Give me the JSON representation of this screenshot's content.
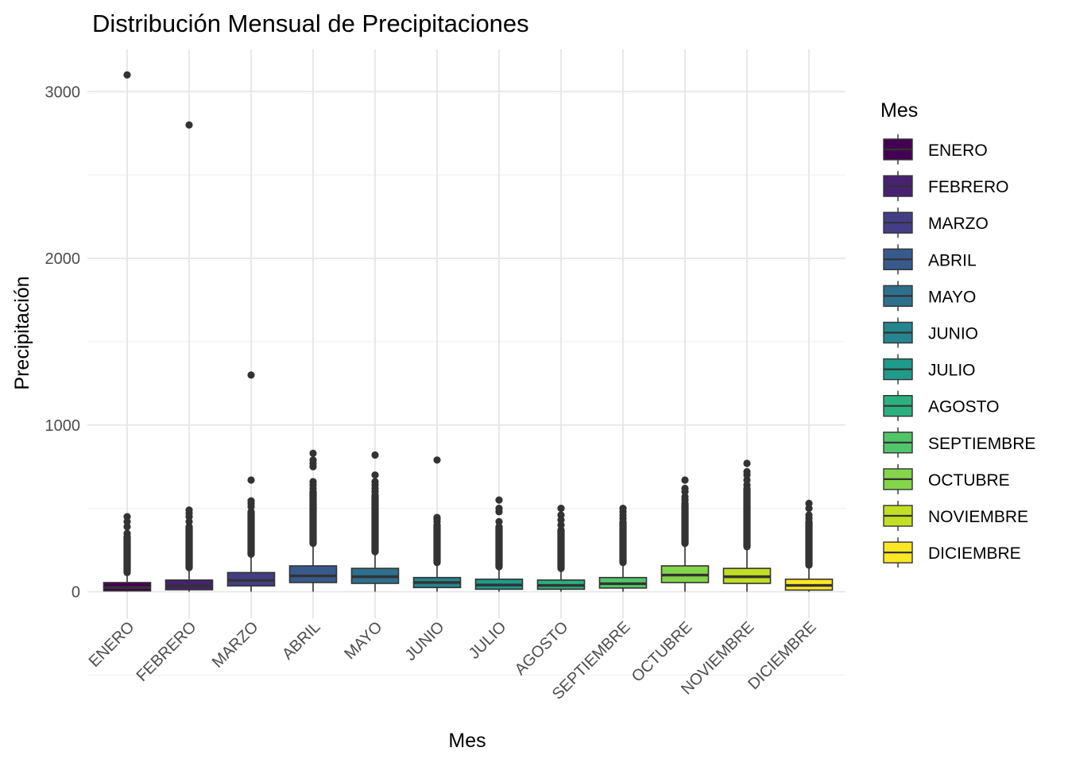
{
  "chart_data": {
    "type": "boxplot",
    "title": "Distribución Mensual de Precipitaciones",
    "xlabel": "Mes",
    "ylabel": "Precipitación",
    "ylim": [
      -160,
      3250
    ],
    "yticks": [
      0,
      1000,
      2000,
      3000
    ],
    "grid": true,
    "legend": {
      "title": "Mes",
      "position": "right"
    },
    "categories": [
      "ENERO",
      "FEBRERO",
      "MARZO",
      "ABRIL",
      "MAYO",
      "JUNIO",
      "JULIO",
      "AGOSTO",
      "SEPTIEMBRE",
      "OCTUBRE",
      "NOVIEMBRE",
      "DICIEMBRE"
    ],
    "colors": [
      "#440154",
      "#482173",
      "#433E85",
      "#38598C",
      "#2D708E",
      "#25858E",
      "#1E9B8A",
      "#2BB07F",
      "#51C56A",
      "#85D54A",
      "#C2DF23",
      "#FDE725"
    ],
    "series": [
      {
        "name": "ENERO",
        "q1": 5,
        "median": 25,
        "q3": 55,
        "whisker_low": 0,
        "whisker_high": 115,
        "outlier_dense": [
          115,
          330
        ],
        "outliers": [
          350,
          390,
          420,
          450,
          3100
        ]
      },
      {
        "name": "FEBRERO",
        "q1": 12,
        "median": 35,
        "q3": 70,
        "whisker_low": 0,
        "whisker_high": 145,
        "outlier_dense": [
          145,
          390
        ],
        "outliers": [
          420,
          450,
          470,
          490,
          2800
        ]
      },
      {
        "name": "MARZO",
        "q1": 35,
        "median": 68,
        "q3": 115,
        "whisker_low": 0,
        "whisker_high": 225,
        "outlier_dense": [
          225,
          480
        ],
        "outliers": [
          510,
          530,
          545,
          670,
          1300
        ]
      },
      {
        "name": "ABRIL",
        "q1": 55,
        "median": 95,
        "q3": 155,
        "whisker_low": 0,
        "whisker_high": 290,
        "outlier_dense": [
          290,
          600
        ],
        "outliers": [
          620,
          640,
          660,
          750,
          770,
          790,
          830
        ]
      },
      {
        "name": "MAYO",
        "q1": 50,
        "median": 90,
        "q3": 140,
        "whisker_low": 0,
        "whisker_high": 240,
        "outlier_dense": [
          240,
          580
        ],
        "outliers": [
          600,
          620,
          640,
          660,
          700,
          820
        ]
      },
      {
        "name": "JUNIO",
        "q1": 25,
        "median": 55,
        "q3": 85,
        "whisker_low": 0,
        "whisker_high": 175,
        "outlier_dense": [
          175,
          400
        ],
        "outliers": [
          420,
          435,
          445,
          790
        ]
      },
      {
        "name": "JULIO",
        "q1": 15,
        "median": 40,
        "q3": 75,
        "whisker_low": 0,
        "whisker_high": 150,
        "outlier_dense": [
          150,
          390
        ],
        "outliers": [
          420,
          480,
          500,
          550
        ]
      },
      {
        "name": "AGOSTO",
        "q1": 15,
        "median": 38,
        "q3": 70,
        "whisker_low": 0,
        "whisker_high": 140,
        "outlier_dense": [
          140,
          370
        ],
        "outliers": [
          400,
          430,
          460,
          500
        ]
      },
      {
        "name": "SEPTIEMBRE",
        "q1": 22,
        "median": 48,
        "q3": 85,
        "whisker_low": 0,
        "whisker_high": 175,
        "outlier_dense": [
          175,
          420
        ],
        "outliers": [
          440,
          460,
          480,
          500
        ]
      },
      {
        "name": "OCTUBRE",
        "q1": 55,
        "median": 100,
        "q3": 155,
        "whisker_low": 0,
        "whisker_high": 290,
        "outlier_dense": [
          290,
          530
        ],
        "outliers": [
          550,
          570,
          600,
          620,
          670
        ]
      },
      {
        "name": "NOVIEMBRE",
        "q1": 50,
        "median": 90,
        "q3": 140,
        "whisker_low": 0,
        "whisker_high": 270,
        "outlier_dense": [
          270,
          620
        ],
        "outliers": [
          640,
          670,
          700,
          720,
          770
        ]
      },
      {
        "name": "DICIEMBRE",
        "q1": 10,
        "median": 38,
        "q3": 75,
        "whisker_low": 0,
        "whisker_high": 160,
        "outlier_dense": [
          160,
          420
        ],
        "outliers": [
          440,
          460,
          500,
          530
        ]
      }
    ]
  }
}
